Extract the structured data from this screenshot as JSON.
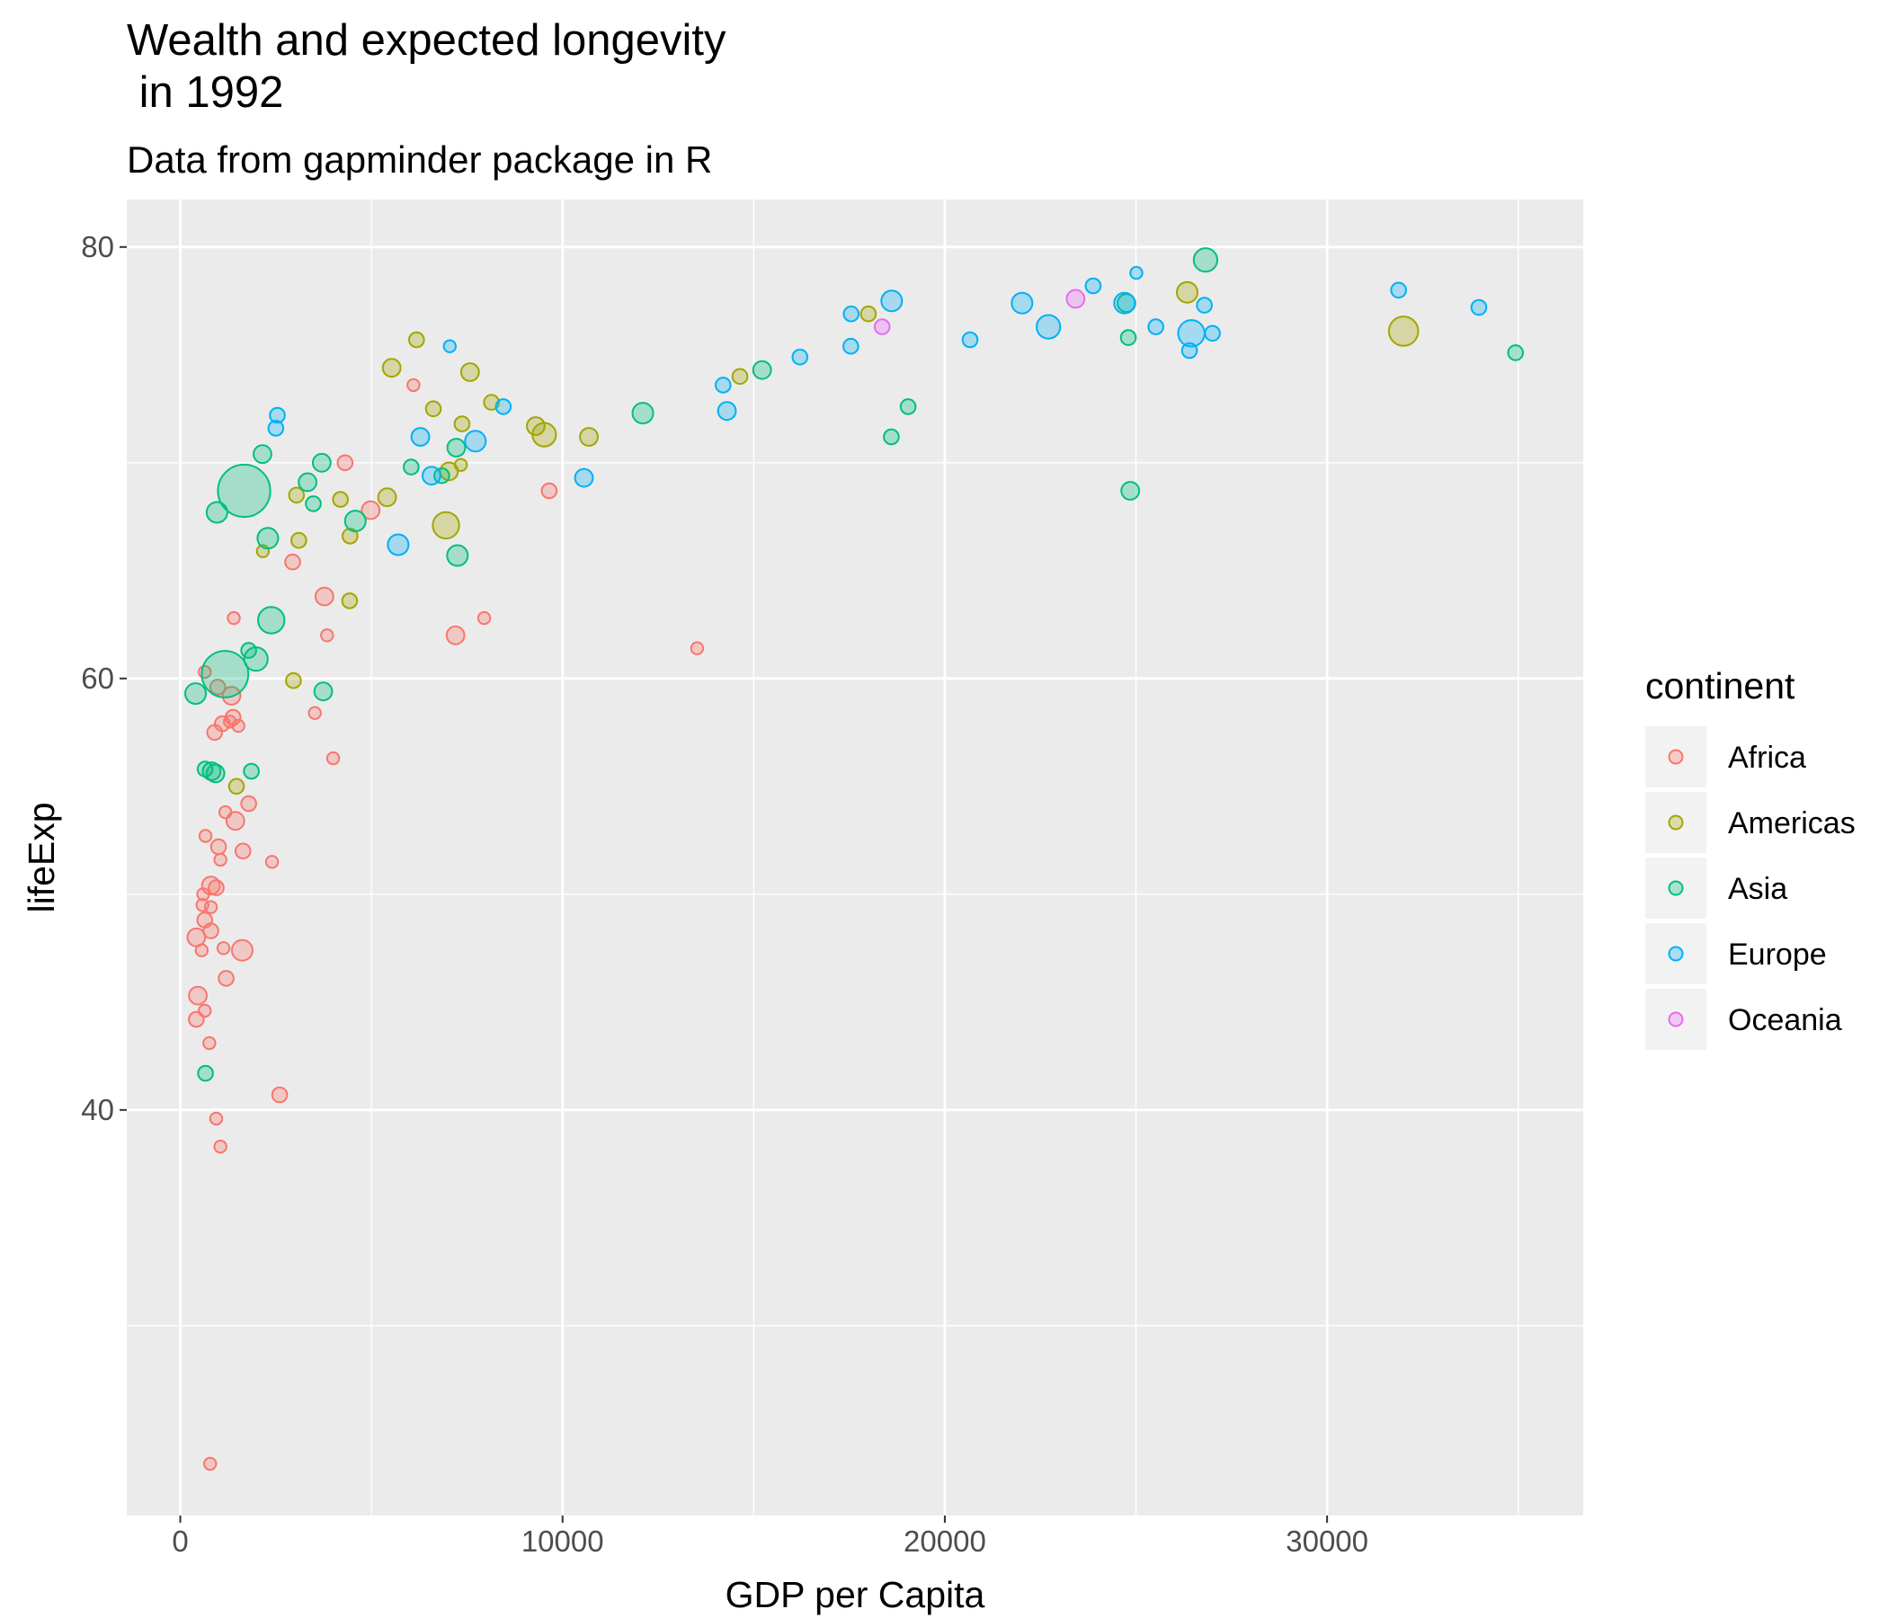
{
  "chart_data": {
    "type": "scatter",
    "title": "Wealth and expected longevity\n in 1992",
    "subtitle": "Data from gapminder package in R",
    "xlabel": "GDP per Capita",
    "ylabel": "lifeExp",
    "xlim": [
      -1400,
      36700
    ],
    "ylim": [
      21.2,
      82.2
    ],
    "xticks": [
      0,
      10000,
      20000,
      30000
    ],
    "xtick_labels": [
      "0",
      "10000",
      "20000",
      "30000"
    ],
    "yticks": [
      40,
      60,
      80
    ],
    "ytick_labels": [
      "40",
      "60",
      "80"
    ],
    "minor_yticks": [
      30,
      50,
      70
    ],
    "minor_xticks": [
      5000,
      15000,
      25000,
      35000
    ],
    "grid": true,
    "legend_title": "continent",
    "legend_position": "right",
    "series": [
      {
        "name": "Africa",
        "color": "#F8766D",
        "points": [
          [
            780,
            23.6,
            1
          ],
          [
            1050,
            38.3,
            1
          ],
          [
            940,
            39.6,
            1
          ],
          [
            2600,
            40.7,
            1.5
          ],
          [
            760,
            43.1,
            1
          ],
          [
            640,
            44.6,
            1
          ],
          [
            420,
            44.2,
            1.5
          ],
          [
            460,
            45.3,
            2
          ],
          [
            1200,
            46.1,
            1.5
          ],
          [
            1620,
            47.4,
            2.5
          ],
          [
            1130,
            47.5,
            1
          ],
          [
            560,
            47.4,
            1
          ],
          [
            420,
            48.0,
            2
          ],
          [
            800,
            48.3,
            1.5
          ],
          [
            640,
            48.8,
            1.5
          ],
          [
            800,
            49.4,
            1
          ],
          [
            580,
            49.5,
            1
          ],
          [
            600,
            50.0,
            1
          ],
          [
            800,
            50.4,
            2
          ],
          [
            940,
            50.3,
            1.5
          ],
          [
            1050,
            51.6,
            1
          ],
          [
            2400,
            51.5,
            1
          ],
          [
            1640,
            52.0,
            1.5
          ],
          [
            1000,
            52.2,
            1.5
          ],
          [
            660,
            52.7,
            1
          ],
          [
            1440,
            53.4,
            2
          ],
          [
            1180,
            53.8,
            1
          ],
          [
            1790,
            54.2,
            1.5
          ],
          [
            4000,
            56.3,
            1
          ],
          [
            1520,
            57.8,
            1
          ],
          [
            1380,
            58.2,
            1.5
          ],
          [
            1300,
            58.0,
            1
          ],
          [
            3520,
            58.4,
            1
          ],
          [
            900,
            57.5,
            1.5
          ],
          [
            1100,
            57.9,
            1.5
          ],
          [
            1340,
            59.2,
            2
          ],
          [
            980,
            59.6,
            1.5
          ],
          [
            640,
            60.3,
            1
          ],
          [
            3840,
            62.0,
            1
          ],
          [
            7200,
            62.0,
            2
          ],
          [
            7950,
            62.8,
            1
          ],
          [
            1400,
            62.8,
            1
          ],
          [
            3770,
            63.8,
            2
          ],
          [
            13520,
            61.4,
            1
          ],
          [
            2940,
            65.4,
            1.5
          ],
          [
            4980,
            67.8,
            2
          ],
          [
            9650,
            68.7,
            1.5
          ],
          [
            4310,
            70.0,
            1.5
          ],
          [
            6100,
            73.6,
            1
          ]
        ]
      },
      {
        "name": "Americas",
        "color": "#A3A500",
        "points": [
          [
            1470,
            55.0,
            1.5
          ],
          [
            2960,
            59.9,
            1.5
          ],
          [
            4430,
            63.6,
            1.5
          ],
          [
            2160,
            65.9,
            1
          ],
          [
            3100,
            66.4,
            1.5
          ],
          [
            4440,
            66.6,
            1.5
          ],
          [
            6950,
            67.1,
            3.5
          ],
          [
            5410,
            68.4,
            2
          ],
          [
            4190,
            68.3,
            1.5
          ],
          [
            3040,
            68.5,
            1.5
          ],
          [
            7030,
            69.6,
            2
          ],
          [
            7340,
            69.9,
            1
          ],
          [
            9520,
            71.3,
            3
          ],
          [
            9300,
            71.7,
            2
          ],
          [
            10690,
            71.2,
            2
          ],
          [
            7370,
            71.8,
            1.5
          ],
          [
            8140,
            72.8,
            1.5
          ],
          [
            6620,
            72.5,
            1.5
          ],
          [
            7580,
            74.2,
            2
          ],
          [
            5530,
            74.4,
            2
          ],
          [
            6180,
            75.7,
            1.5
          ],
          [
            14640,
            74.0,
            1.5
          ],
          [
            18000,
            76.9,
            1.5
          ],
          [
            26340,
            77.9,
            2.5
          ],
          [
            32000,
            76.1,
            4
          ]
        ]
      },
      {
        "name": "Asia",
        "color": "#00BF7D",
        "points": [
          [
            660,
            41.7,
            1.5
          ],
          [
            820,
            55.7,
            2
          ],
          [
            650,
            55.8,
            1.5
          ],
          [
            920,
            55.6,
            2
          ],
          [
            1860,
            55.7,
            1.5
          ],
          [
            3740,
            59.4,
            2
          ],
          [
            400,
            59.3,
            2.5
          ],
          [
            1170,
            60.2,
            7
          ],
          [
            1790,
            61.3,
            1.5
          ],
          [
            1980,
            60.9,
            3
          ],
          [
            2380,
            62.7,
            3.5
          ],
          [
            7250,
            65.7,
            2.5
          ],
          [
            2290,
            66.5,
            2.5
          ],
          [
            4580,
            67.3,
            2.5
          ],
          [
            960,
            67.7,
            2.5
          ],
          [
            1670,
            68.7,
            8
          ],
          [
            3480,
            68.1,
            1.5
          ],
          [
            3330,
            69.1,
            2
          ],
          [
            6040,
            69.8,
            1.5
          ],
          [
            6840,
            69.4,
            1.5
          ],
          [
            3700,
            70.0,
            2
          ],
          [
            2150,
            70.4,
            2
          ],
          [
            7220,
            70.7,
            2
          ],
          [
            12100,
            72.3,
            2.5
          ],
          [
            15220,
            74.3,
            2
          ],
          [
            18600,
            71.2,
            1.5
          ],
          [
            19040,
            72.6,
            1.5
          ],
          [
            24850,
            68.7,
            2
          ],
          [
            24800,
            75.8,
            1.5
          ],
          [
            24750,
            77.4,
            2
          ],
          [
            26820,
            79.4,
            3
          ],
          [
            34930,
            75.1,
            1.5
          ]
        ]
      },
      {
        "name": "Europe",
        "color": "#00B0F6",
        "points": [
          [
            2500,
            71.6,
            1.5
          ],
          [
            2540,
            72.2,
            1.5
          ],
          [
            5700,
            66.2,
            2.5
          ],
          [
            6570,
            69.4,
            2
          ],
          [
            6280,
            71.2,
            2
          ],
          [
            7720,
            71.0,
            2.5
          ],
          [
            8450,
            72.6,
            1.5
          ],
          [
            7050,
            75.4,
            1
          ],
          [
            10560,
            69.3,
            2
          ],
          [
            14300,
            72.4,
            2
          ],
          [
            14200,
            73.6,
            1.5
          ],
          [
            16210,
            74.9,
            1.5
          ],
          [
            17540,
            75.4,
            1.5
          ],
          [
            17550,
            76.9,
            1.5
          ],
          [
            18610,
            77.5,
            2.5
          ],
          [
            20660,
            75.7,
            1.5
          ],
          [
            22020,
            77.4,
            2.5
          ],
          [
            22710,
            76.3,
            3
          ],
          [
            23880,
            78.2,
            1.5
          ],
          [
            24700,
            77.4,
            2.5
          ],
          [
            25010,
            78.8,
            1
          ],
          [
            25520,
            76.3,
            1.5
          ],
          [
            26450,
            76.0,
            3.5
          ],
          [
            26400,
            75.2,
            1.5
          ],
          [
            26790,
            77.3,
            1.5
          ],
          [
            27000,
            76.0,
            1.5
          ],
          [
            31870,
            78.0,
            1.5
          ],
          [
            33970,
            77.2,
            1.5
          ]
        ]
      },
      {
        "name": "Oceania",
        "color": "#E76BF3",
        "points": [
          [
            18360,
            76.3,
            1.5
          ],
          [
            23420,
            77.6,
            2
          ]
        ]
      }
    ]
  }
}
